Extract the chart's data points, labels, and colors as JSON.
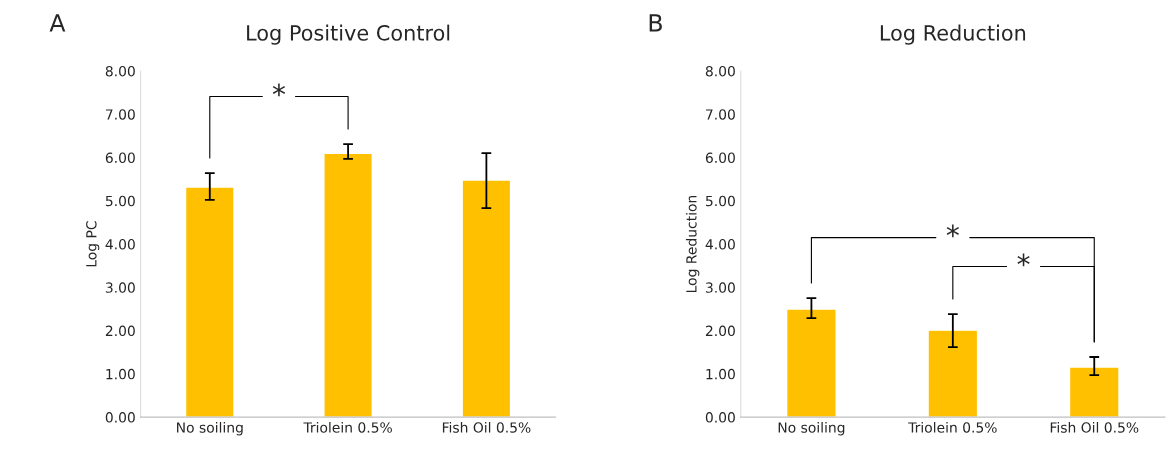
{
  "chart_data": [
    {
      "type": "bar",
      "title": "Log Positive Control",
      "ylabel": "Log PC",
      "categories": [
        "No soiling",
        "Triolein 0.5%",
        "Fish Oil 0.5%"
      ],
      "values": [
        5.32,
        6.1,
        5.48
      ],
      "errors": [
        [
          5.02,
          5.64
        ],
        [
          5.97,
          6.31
        ],
        [
          4.83,
          6.1
        ]
      ],
      "color": "#ffc000",
      "ylim": [
        0,
        8
      ],
      "yticks": [
        {
          "value": 0,
          "label": "0.00"
        },
        {
          "value": 1,
          "label": "1.00"
        },
        {
          "value": 2,
          "label": "2.00"
        },
        {
          "value": 3,
          "label": "3.00"
        },
        {
          "value": 4,
          "label": "4.00"
        },
        {
          "value": 5,
          "label": "5.00"
        },
        {
          "value": 6,
          "label": "6.00"
        },
        {
          "value": 7,
          "label": "7.00"
        },
        {
          "value": 8,
          "label": "8.00"
        }
      ],
      "grid": false,
      "legend": false,
      "annotations": [
        "A",
        "*"
      ]
    },
    {
      "type": "bar",
      "title": "Log Reduction",
      "ylabel": "Log Reduction",
      "categories": [
        "No soiling",
        "Triolein 0.5%",
        "Fish Oil 0.5%"
      ],
      "values": [
        2.5,
        2.01,
        1.16
      ],
      "errors": [
        [
          2.29,
          2.75
        ],
        [
          1.62,
          2.38
        ],
        [
          0.97,
          1.39
        ]
      ],
      "color": "#ffc000",
      "ylim": [
        0,
        8
      ],
      "yticks": [
        {
          "value": 0,
          "label": "0.00"
        },
        {
          "value": 1,
          "label": "1.00"
        },
        {
          "value": 2,
          "label": "2.00"
        },
        {
          "value": 3,
          "label": "3.00"
        },
        {
          "value": 4,
          "label": "4.00"
        },
        {
          "value": 5,
          "label": "5.00"
        },
        {
          "value": 6,
          "label": "6.00"
        },
        {
          "value": 7,
          "label": "7.00"
        },
        {
          "value": 8,
          "label": "8.00"
        }
      ],
      "grid": false,
      "legend": false,
      "annotations": [
        "B",
        "*",
        "*"
      ]
    }
  ]
}
